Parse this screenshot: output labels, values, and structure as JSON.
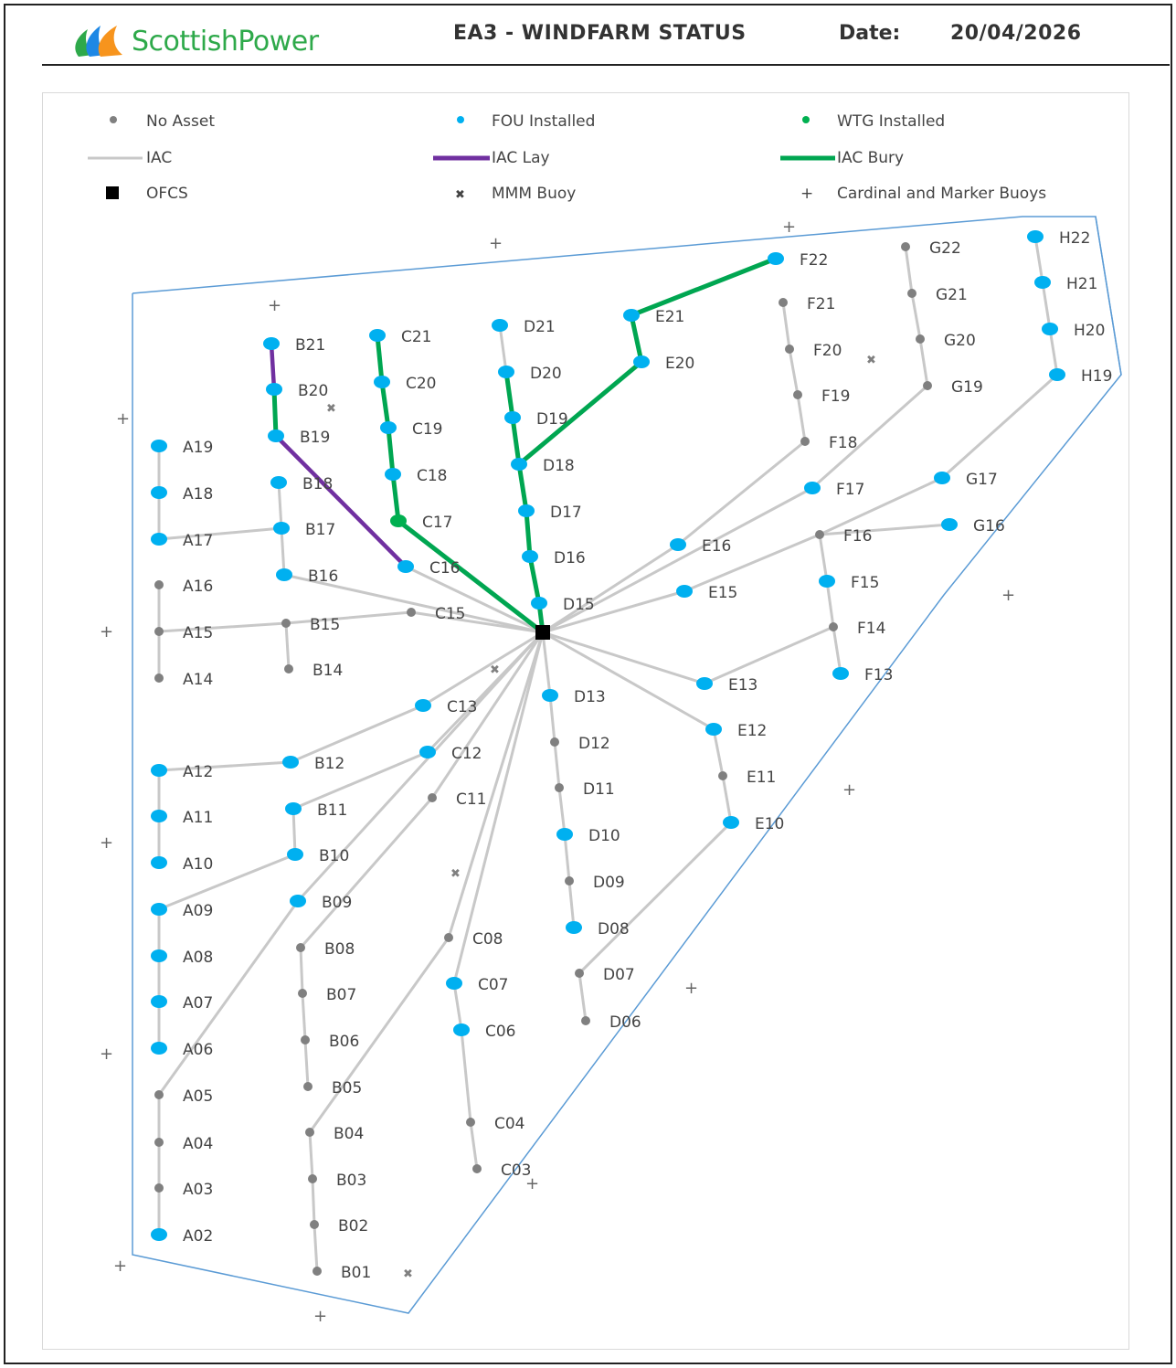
{
  "header": {
    "brand": "ScottishPower",
    "title": "EA3 - WINDFARM STATUS",
    "date_label": "Date:",
    "date_value": "20/04/2026"
  },
  "colors": {
    "no_asset": "#808080",
    "fou_installed": "#00b0f0",
    "wtg_installed": "#00b050",
    "iac": "#c8c8c8",
    "iac_lay": "#7030a0",
    "iac_bury": "#00a651",
    "boundary": "#5b9bd5",
    "ofcs": "#000000",
    "logo_green": "#2ea94a",
    "logo_orange": "#f7941d",
    "logo_blue": "#1e88e5"
  },
  "legend": {
    "no_asset": "No Asset",
    "fou_installed": "FOU Installed",
    "wtg_installed": "WTG Installed",
    "iac": "IAC",
    "iac_lay": "IAC Lay",
    "iac_bury": "IAC Bury",
    "ofcs": "OFCS",
    "mmm_buoy": "MMM Buoy",
    "cardinal_buoys": "Cardinal and Marker Buoys"
  },
  "turbines": [
    {
      "id": "A19",
      "status": "fou"
    },
    {
      "id": "A18",
      "status": "fou"
    },
    {
      "id": "A17",
      "status": "fou"
    },
    {
      "id": "A16",
      "status": "none"
    },
    {
      "id": "A15",
      "status": "none"
    },
    {
      "id": "A14",
      "status": "none"
    },
    {
      "id": "A12",
      "status": "fou"
    },
    {
      "id": "A11",
      "status": "fou"
    },
    {
      "id": "A10",
      "status": "fou"
    },
    {
      "id": "A09",
      "status": "fou"
    },
    {
      "id": "A08",
      "status": "fou"
    },
    {
      "id": "A07",
      "status": "fou"
    },
    {
      "id": "A06",
      "status": "fou"
    },
    {
      "id": "A05",
      "status": "none"
    },
    {
      "id": "A04",
      "status": "none"
    },
    {
      "id": "A03",
      "status": "none"
    },
    {
      "id": "A02",
      "status": "fou"
    },
    {
      "id": "B21",
      "status": "fou"
    },
    {
      "id": "B20",
      "status": "fou"
    },
    {
      "id": "B19",
      "status": "fou"
    },
    {
      "id": "B18",
      "status": "fou"
    },
    {
      "id": "B17",
      "status": "fou"
    },
    {
      "id": "B16",
      "status": "fou"
    },
    {
      "id": "B15",
      "status": "none"
    },
    {
      "id": "B14",
      "status": "none"
    },
    {
      "id": "B12",
      "status": "fou"
    },
    {
      "id": "B11",
      "status": "fou"
    },
    {
      "id": "B10",
      "status": "fou"
    },
    {
      "id": "B09",
      "status": "fou"
    },
    {
      "id": "B08",
      "status": "none"
    },
    {
      "id": "B07",
      "status": "none"
    },
    {
      "id": "B06",
      "status": "none"
    },
    {
      "id": "B05",
      "status": "none"
    },
    {
      "id": "B04",
      "status": "none"
    },
    {
      "id": "B03",
      "status": "none"
    },
    {
      "id": "B02",
      "status": "none"
    },
    {
      "id": "B01",
      "status": "none"
    },
    {
      "id": "C21",
      "status": "fou"
    },
    {
      "id": "C20",
      "status": "fou"
    },
    {
      "id": "C19",
      "status": "fou"
    },
    {
      "id": "C18",
      "status": "fou"
    },
    {
      "id": "C17",
      "status": "wtg"
    },
    {
      "id": "C16",
      "status": "fou"
    },
    {
      "id": "C15",
      "status": "none"
    },
    {
      "id": "C13",
      "status": "fou"
    },
    {
      "id": "C12",
      "status": "fou"
    },
    {
      "id": "C11",
      "status": "none"
    },
    {
      "id": "C08",
      "status": "none"
    },
    {
      "id": "C07",
      "status": "fou"
    },
    {
      "id": "C06",
      "status": "fou"
    },
    {
      "id": "C04",
      "status": "none"
    },
    {
      "id": "C03",
      "status": "none"
    },
    {
      "id": "D21",
      "status": "fou"
    },
    {
      "id": "D20",
      "status": "fou"
    },
    {
      "id": "D19",
      "status": "fou"
    },
    {
      "id": "D18",
      "status": "fou"
    },
    {
      "id": "D17",
      "status": "fou"
    },
    {
      "id": "D16",
      "status": "fou"
    },
    {
      "id": "D15",
      "status": "fou"
    },
    {
      "id": "D13",
      "status": "fou"
    },
    {
      "id": "D12",
      "status": "none"
    },
    {
      "id": "D11",
      "status": "none"
    },
    {
      "id": "D10",
      "status": "fou"
    },
    {
      "id": "D09",
      "status": "none"
    },
    {
      "id": "D08",
      "status": "fou"
    },
    {
      "id": "D07",
      "status": "none"
    },
    {
      "id": "D06",
      "status": "none"
    },
    {
      "id": "E21",
      "status": "fou"
    },
    {
      "id": "E20",
      "status": "fou"
    },
    {
      "id": "E16",
      "status": "fou"
    },
    {
      "id": "E15",
      "status": "fou"
    },
    {
      "id": "E13",
      "status": "fou"
    },
    {
      "id": "E12",
      "status": "fou"
    },
    {
      "id": "E11",
      "status": "none"
    },
    {
      "id": "E10",
      "status": "fou"
    },
    {
      "id": "F22",
      "status": "fou"
    },
    {
      "id": "F21",
      "status": "none"
    },
    {
      "id": "F20",
      "status": "none"
    },
    {
      "id": "F19",
      "status": "none"
    },
    {
      "id": "F18",
      "status": "none"
    },
    {
      "id": "F17",
      "status": "fou"
    },
    {
      "id": "F16",
      "status": "none"
    },
    {
      "id": "F15",
      "status": "fou"
    },
    {
      "id": "F14",
      "status": "none"
    },
    {
      "id": "F13",
      "status": "fou"
    },
    {
      "id": "G22",
      "status": "none"
    },
    {
      "id": "G21",
      "status": "none"
    },
    {
      "id": "G20",
      "status": "none"
    },
    {
      "id": "G19",
      "status": "none"
    },
    {
      "id": "G17",
      "status": "fou"
    },
    {
      "id": "G16",
      "status": "fou"
    },
    {
      "id": "H22",
      "status": "fou"
    },
    {
      "id": "H21",
      "status": "fou"
    },
    {
      "id": "H20",
      "status": "fou"
    },
    {
      "id": "H19",
      "status": "fou"
    }
  ],
  "cables": [
    {
      "from": "A19",
      "to": "A18",
      "state": "iac"
    },
    {
      "from": "A18",
      "to": "A17",
      "state": "iac"
    },
    {
      "from": "A17",
      "to": "B17",
      "state": "iac"
    },
    {
      "from": "A16",
      "to": "A15",
      "state": "iac"
    },
    {
      "from": "A15",
      "to": "A14",
      "state": "iac"
    },
    {
      "from": "A15",
      "to": "B15",
      "state": "iac"
    },
    {
      "from": "B15",
      "to": "B14",
      "state": "iac"
    },
    {
      "from": "B15",
      "to": "C15",
      "state": "iac"
    },
    {
      "from": "C15",
      "to": "OFCS",
      "state": "iac"
    },
    {
      "from": "B18",
      "to": "B17",
      "state": "iac"
    },
    {
      "from": "B17",
      "to": "B16",
      "state": "iac"
    },
    {
      "from": "B16",
      "to": "OFCS",
      "state": "iac"
    },
    {
      "from": "B21",
      "to": "B20",
      "state": "lay"
    },
    {
      "from": "B20",
      "to": "B19",
      "state": "bury"
    },
    {
      "from": "B19",
      "to": "C16",
      "state": "lay"
    },
    {
      "from": "C16",
      "to": "OFCS",
      "state": "iac"
    },
    {
      "from": "C21",
      "to": "C20",
      "state": "bury"
    },
    {
      "from": "C20",
      "to": "C19",
      "state": "bury"
    },
    {
      "from": "C19",
      "to": "C18",
      "state": "bury"
    },
    {
      "from": "C18",
      "to": "C17",
      "state": "bury"
    },
    {
      "from": "C17",
      "to": "OFCS",
      "state": "bury"
    },
    {
      "from": "D21",
      "to": "D20",
      "state": "iac"
    },
    {
      "from": "D20",
      "to": "D19",
      "state": "bury"
    },
    {
      "from": "D19",
      "to": "D18",
      "state": "bury"
    },
    {
      "from": "D18",
      "to": "D17",
      "state": "bury"
    },
    {
      "from": "D17",
      "to": "D16",
      "state": "bury"
    },
    {
      "from": "D16",
      "to": "D15",
      "state": "bury"
    },
    {
      "from": "D15",
      "to": "OFCS",
      "state": "bury"
    },
    {
      "from": "F22",
      "to": "E21",
      "state": "bury"
    },
    {
      "from": "E21",
      "to": "E20",
      "state": "bury"
    },
    {
      "from": "E20",
      "to": "D18",
      "state": "bury"
    },
    {
      "from": "F21",
      "to": "F20",
      "state": "iac"
    },
    {
      "from": "F20",
      "to": "F19",
      "state": "iac"
    },
    {
      "from": "F19",
      "to": "F18",
      "state": "iac"
    },
    {
      "from": "F18",
      "to": "E16",
      "state": "iac"
    },
    {
      "from": "E16",
      "to": "OFCS",
      "state": "iac"
    },
    {
      "from": "G22",
      "to": "G21",
      "state": "iac"
    },
    {
      "from": "G21",
      "to": "G20",
      "state": "iac"
    },
    {
      "from": "G20",
      "to": "G19",
      "state": "iac"
    },
    {
      "from": "G19",
      "to": "F17",
      "state": "iac"
    },
    {
      "from": "F17",
      "to": "OFCS",
      "state": "iac"
    },
    {
      "from": "H22",
      "to": "H21",
      "state": "iac"
    },
    {
      "from": "H21",
      "to": "H20",
      "state": "iac"
    },
    {
      "from": "H20",
      "to": "H19",
      "state": "iac"
    },
    {
      "from": "H19",
      "to": "G17",
      "state": "iac"
    },
    {
      "from": "G17",
      "to": "F16",
      "state": "iac"
    },
    {
      "from": "G16",
      "to": "F16",
      "state": "iac"
    },
    {
      "from": "F16",
      "to": "E15",
      "state": "iac"
    },
    {
      "from": "E15",
      "to": "OFCS",
      "state": "iac"
    },
    {
      "from": "F16",
      "to": "F15",
      "state": "iac"
    },
    {
      "from": "F15",
      "to": "F14",
      "state": "iac"
    },
    {
      "from": "F14",
      "to": "F13",
      "state": "iac"
    },
    {
      "from": "F14",
      "to": "E13",
      "state": "iac"
    },
    {
      "from": "E13",
      "to": "OFCS",
      "state": "iac"
    },
    {
      "from": "E10",
      "to": "E11",
      "state": "iac"
    },
    {
      "from": "E11",
      "to": "E12",
      "state": "iac"
    },
    {
      "from": "E12",
      "to": "OFCS",
      "state": "iac"
    },
    {
      "from": "E10",
      "to": "D07",
      "state": "iac"
    },
    {
      "from": "D07",
      "to": "D06",
      "state": "iac"
    },
    {
      "from": "D08",
      "to": "D09",
      "state": "iac"
    },
    {
      "from": "D09",
      "to": "D10",
      "state": "iac"
    },
    {
      "from": "D10",
      "to": "D11",
      "state": "iac"
    },
    {
      "from": "D11",
      "to": "D12",
      "state": "iac"
    },
    {
      "from": "D12",
      "to": "D13",
      "state": "iac"
    },
    {
      "from": "D13",
      "to": "OFCS",
      "state": "iac"
    },
    {
      "from": "C03",
      "to": "C04",
      "state": "iac"
    },
    {
      "from": "C04",
      "to": "C06",
      "state": "iac"
    },
    {
      "from": "C06",
      "to": "C07",
      "state": "iac"
    },
    {
      "from": "C07",
      "to": "OFCS",
      "state": "iac"
    },
    {
      "from": "B04",
      "to": "C08",
      "state": "iac"
    },
    {
      "from": "C08",
      "to": "OFCS",
      "state": "iac"
    },
    {
      "from": "B01",
      "to": "B02",
      "state": "iac"
    },
    {
      "from": "B02",
      "to": "B03",
      "state": "iac"
    },
    {
      "from": "B03",
      "to": "B04",
      "state": "iac"
    },
    {
      "from": "B05",
      "to": "B06",
      "state": "iac"
    },
    {
      "from": "B06",
      "to": "B07",
      "state": "iac"
    },
    {
      "from": "B07",
      "to": "B08",
      "state": "iac"
    },
    {
      "from": "B08",
      "to": "C11",
      "state": "iac"
    },
    {
      "from": "C11",
      "to": "OFCS",
      "state": "iac"
    },
    {
      "from": "A05",
      "to": "B09",
      "state": "iac"
    },
    {
      "from": "B09",
      "to": "OFCS",
      "state": "iac"
    },
    {
      "from": "A02",
      "to": "A03",
      "state": "iac"
    },
    {
      "from": "A03",
      "to": "A04",
      "state": "iac"
    },
    {
      "from": "A04",
      "to": "A05",
      "state": "iac"
    },
    {
      "from": "A06",
      "to": "A07",
      "state": "iac"
    },
    {
      "from": "A07",
      "to": "A08",
      "state": "iac"
    },
    {
      "from": "A08",
      "to": "A09",
      "state": "iac"
    },
    {
      "from": "A09",
      "to": "B10",
      "state": "iac"
    },
    {
      "from": "B10",
      "to": "B11",
      "state": "iac"
    },
    {
      "from": "B11",
      "to": "C12",
      "state": "iac"
    },
    {
      "from": "C12",
      "to": "OFCS",
      "state": "iac"
    },
    {
      "from": "A10",
      "to": "A11",
      "state": "iac"
    },
    {
      "from": "A11",
      "to": "A12",
      "state": "iac"
    },
    {
      "from": "A12",
      "to": "B12",
      "state": "iac"
    },
    {
      "from": "B12",
      "to": "C13",
      "state": "iac"
    },
    {
      "from": "C13",
      "to": "OFCS",
      "state": "iac"
    }
  ]
}
